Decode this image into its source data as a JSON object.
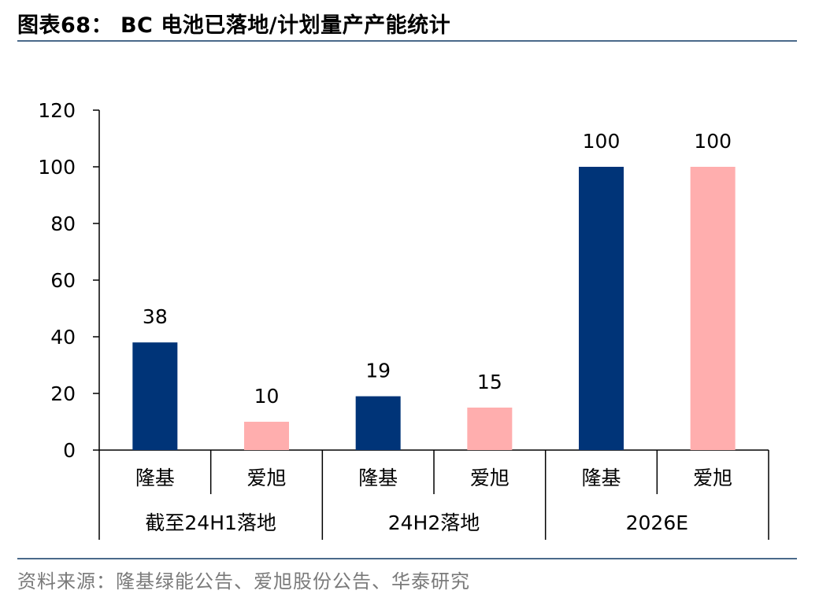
{
  "header": {
    "title": "图表68： BC 电池已落地/计划量产产能统计"
  },
  "footer": {
    "source": "资料来源：隆基绿能公告、爱旭股份公告、华泰研究"
  },
  "chart_data": {
    "type": "bar",
    "title": "",
    "xlabel": "",
    "ylabel": "",
    "ylim": [
      0,
      120
    ],
    "yticks": [
      0,
      20,
      40,
      60,
      80,
      100,
      120
    ],
    "groups": [
      "截至24H1落地",
      "24H2落地",
      "2026E"
    ],
    "categories": [
      "隆基",
      "爱旭",
      "隆基",
      "爱旭",
      "隆基",
      "爱旭"
    ],
    "values": [
      38,
      10,
      19,
      15,
      100,
      100
    ],
    "bar_colors": [
      "#003478",
      "#ffaeae",
      "#003478",
      "#ffaeae",
      "#003478",
      "#ffaeae"
    ],
    "data_labels": true,
    "grid": false,
    "legend": "none"
  }
}
